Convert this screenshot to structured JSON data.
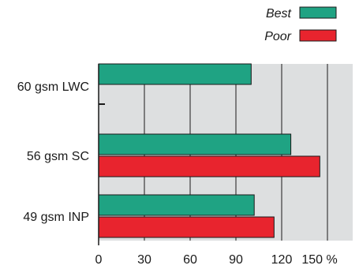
{
  "chart_data": {
    "type": "bar",
    "orientation": "horizontal",
    "categories": [
      "60 gsm LWC",
      "56 gsm SC",
      "49 gsm INP"
    ],
    "series": [
      {
        "name": "Best",
        "values": [
          100,
          126,
          102
        ],
        "color": "#1fa383"
      },
      {
        "name": "Poor",
        "values": [
          0,
          145,
          115
        ],
        "color": "#e8242e"
      }
    ],
    "xlim": [
      0,
      150
    ],
    "xticks": [
      "0",
      "30",
      "60",
      "90",
      "120",
      "150 %"
    ],
    "legend_position": "top-right",
    "grid": true,
    "plot_background": "#dddfe0"
  }
}
